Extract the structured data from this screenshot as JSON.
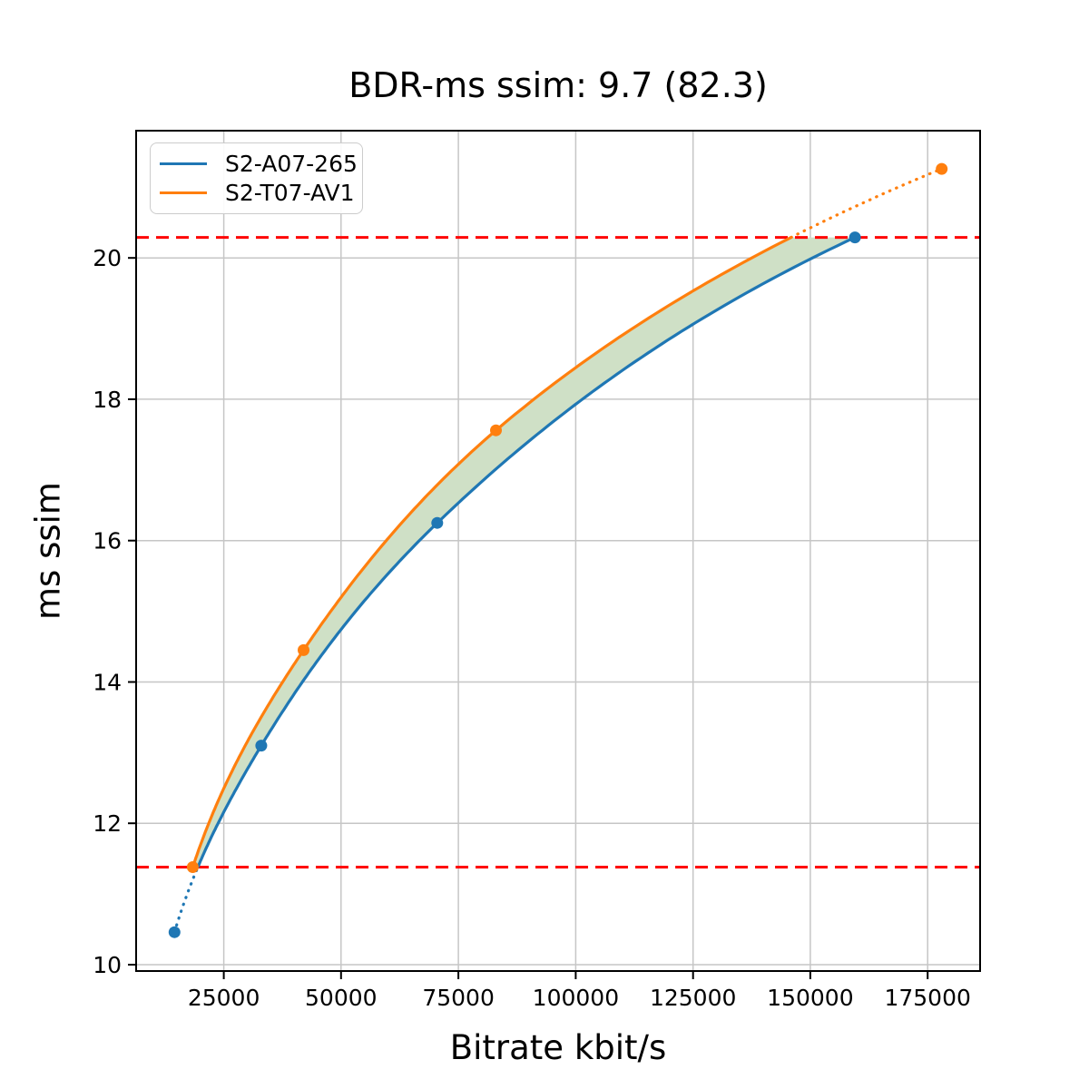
{
  "title": "BDR-ms ssim: 9.7 (82.3)",
  "chart_data": {
    "type": "line",
    "title": "BDR-ms ssim: 9.7 (82.3)",
    "xlabel": "Bitrate kbit/s",
    "ylabel": "ms ssim",
    "xlim": [
      6325,
      186175
    ],
    "ylim": [
      9.91,
      21.8
    ],
    "x_ticks": [
      25000,
      50000,
      75000,
      100000,
      125000,
      150000,
      175000
    ],
    "y_ticks": [
      10,
      12,
      14,
      16,
      18,
      20
    ],
    "grid": true,
    "legend_position": "upper-left",
    "series": [
      {
        "name": "S2-A07-265",
        "color": "#1f77b4",
        "points": [
          [
            14500,
            10.46
          ],
          [
            33000,
            13.1
          ],
          [
            70500,
            16.25
          ],
          [
            159500,
            20.29
          ]
        ]
      },
      {
        "name": "S2-T07-AV1",
        "color": "#ff7f0e",
        "points": [
          [
            18400,
            11.38
          ],
          [
            42000,
            14.45
          ],
          [
            83000,
            17.56
          ],
          [
            178000,
            21.26
          ]
        ]
      }
    ],
    "overlap_lines": {
      "style": "dashed",
      "color": "#ff0000",
      "y_low": 11.38,
      "y_high": 20.29
    },
    "fill_between": {
      "color": "#cfe0c6",
      "between": [
        "S2-T07-AV1",
        "S2-A07-265"
      ],
      "quality_range": [
        11.38,
        20.29
      ]
    }
  }
}
